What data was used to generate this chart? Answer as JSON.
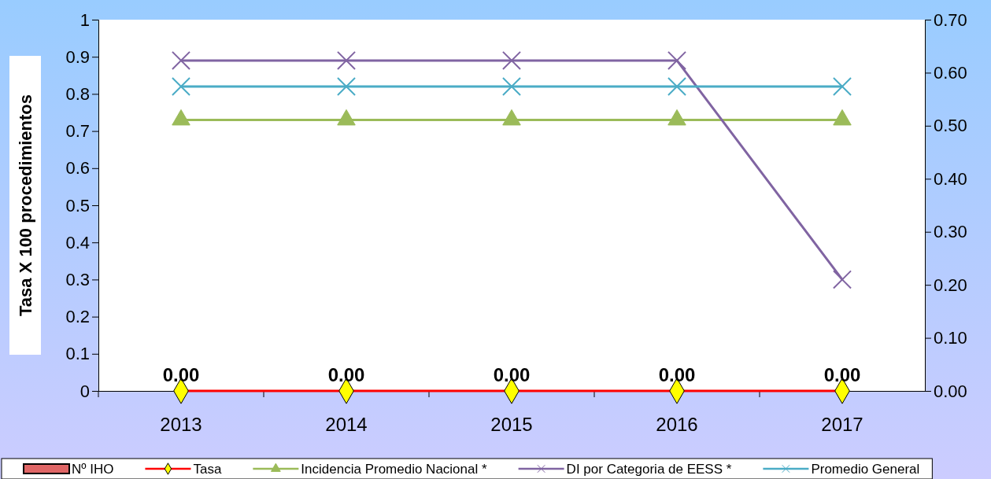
{
  "chart_data": {
    "type": "line",
    "ylabel": "Tasa X 100 procedimientos",
    "categories": [
      "2013",
      "2014",
      "2015",
      "2016",
      "2017"
    ],
    "ylim": [
      0,
      1
    ],
    "yticks": [
      0,
      0.1,
      0.2,
      0.3,
      0.4,
      0.5,
      0.6,
      0.7,
      0.8,
      0.9,
      1
    ],
    "y2lim": [
      0,
      0.7
    ],
    "y2ticks": [
      {
        "value": 0,
        "label": "0.00"
      },
      {
        "value": 0.1,
        "label": "0.10"
      },
      {
        "value": 0.2,
        "label": "0.20"
      },
      {
        "value": 0.3,
        "label": "0.30"
      },
      {
        "value": 0.4,
        "label": "0.40"
      },
      {
        "value": 0.5,
        "label": "0.50"
      },
      {
        "value": 0.6,
        "label": "0.60"
      },
      {
        "value": 0.7,
        "label": "0.70"
      }
    ],
    "legend": "bottom",
    "grid": false,
    "series": [
      {
        "name": "Nº IHO",
        "type": "bar",
        "color": "#e06666",
        "values": [
          0,
          0,
          0,
          0,
          0
        ]
      },
      {
        "name": "Tasa",
        "color": "#ff0000",
        "marker": "diamond",
        "values": [
          0,
          0,
          0,
          0,
          0
        ],
        "value_labels": [
          "0.00",
          "0.00",
          "0.00",
          "0.00",
          "0.00"
        ]
      },
      {
        "name": "Incidencia Promedio Nacional *",
        "color": "#9bbb59",
        "marker": "triangle",
        "values": [
          0.73,
          0.73,
          0.73,
          0.73,
          0.73
        ]
      },
      {
        "name": "DI por Categoria de EESS *",
        "color": "#8064a2",
        "marker": "cross",
        "values": [
          0.89,
          0.89,
          0.89,
          0.89,
          0.3
        ]
      },
      {
        "name": "Promedio General",
        "color": "#4bacc6",
        "marker": "cross",
        "values": [
          0.82,
          0.82,
          0.82,
          0.82,
          0.82
        ]
      }
    ]
  }
}
